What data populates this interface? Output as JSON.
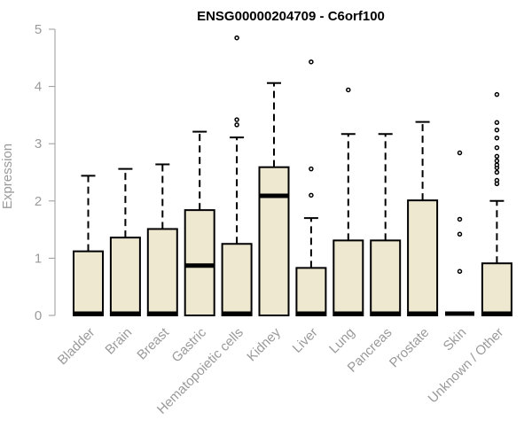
{
  "chart_data": {
    "type": "boxplot",
    "title": "ENSG00000204709 - C6orf100",
    "xlabel": "",
    "ylabel": "Expression",
    "ylim": [
      0,
      5
    ],
    "yticks": [
      "0",
      "1",
      "2",
      "3",
      "4",
      "5"
    ],
    "grid": false,
    "box_fill": "#eee8d0",
    "box_stroke": "#000000",
    "categories": [
      "Bladder",
      "Brain",
      "Breast",
      "Gastric",
      "Hematopoietic cells",
      "Kidney",
      "Liver",
      "Lung",
      "Pancreas",
      "Prostate",
      "Skin",
      "Unknown / Other"
    ],
    "boxes": [
      {
        "q1": 0,
        "median": 0,
        "q3": 1.12,
        "whisker_low": 0,
        "whisker_high": 2.44,
        "outliers": []
      },
      {
        "q1": 0,
        "median": 0,
        "q3": 1.36,
        "whisker_low": 0,
        "whisker_high": 2.56,
        "outliers": []
      },
      {
        "q1": 0,
        "median": 0,
        "q3": 1.51,
        "whisker_low": 0,
        "whisker_high": 2.64,
        "outliers": []
      },
      {
        "q1": 0,
        "median": 0.87,
        "q3": 1.84,
        "whisker_low": 0,
        "whisker_high": 3.21,
        "outliers": []
      },
      {
        "q1": 0,
        "median": 0,
        "q3": 1.25,
        "whisker_low": 0,
        "whisker_high": 3.11,
        "outliers": [
          3.33,
          3.42,
          4.85
        ]
      },
      {
        "q1": 0,
        "median": 2.09,
        "q3": 2.59,
        "whisker_low": 0,
        "whisker_high": 4.06,
        "outliers": []
      },
      {
        "q1": 0,
        "median": 0,
        "q3": 0.83,
        "whisker_low": 0,
        "whisker_high": 1.7,
        "outliers": [
          2.1,
          2.56,
          4.43
        ]
      },
      {
        "q1": 0,
        "median": 0,
        "q3": 1.31,
        "whisker_low": 0,
        "whisker_high": 3.17,
        "outliers": [
          3.94
        ]
      },
      {
        "q1": 0,
        "median": 0,
        "q3": 1.31,
        "whisker_low": 0,
        "whisker_high": 3.17,
        "outliers": []
      },
      {
        "q1": 0,
        "median": 0,
        "q3": 2.01,
        "whisker_low": 0,
        "whisker_high": 3.38,
        "outliers": []
      },
      {
        "q1": 0,
        "median": 0,
        "q3": 0,
        "whisker_low": 0,
        "whisker_high": 0,
        "outliers": [
          0.77,
          1.42,
          1.68,
          2.84
        ]
      },
      {
        "q1": 0,
        "median": 0,
        "q3": 0.91,
        "whisker_low": 0,
        "whisker_high": 2.0,
        "outliers": [
          2.3,
          2.36,
          2.5,
          2.58,
          2.63,
          2.7,
          2.78,
          2.93,
          3.1,
          3.24,
          3.37,
          3.86
        ]
      }
    ]
  }
}
